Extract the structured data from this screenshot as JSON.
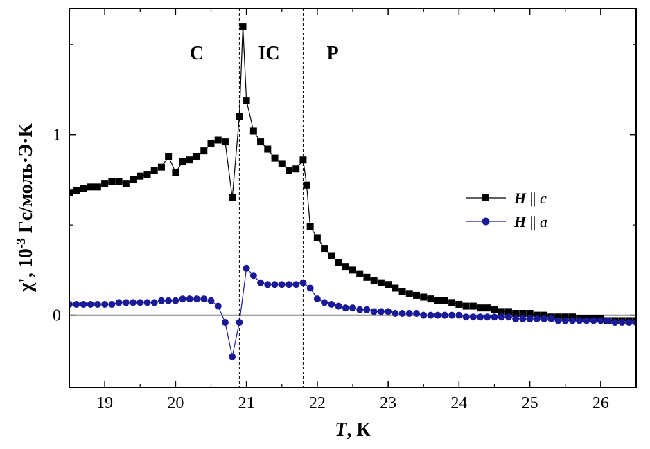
{
  "chart_data": {
    "type": "line",
    "xlabel_var": "T",
    "xlabel_unit": ", К",
    "ylabel_pre": "χ', 10",
    "ylabel_exp": "-3",
    "ylabel_post": " Гс/моль·Э·К",
    "xlim": [
      18.5,
      26.5
    ],
    "ylim": [
      -0.4,
      1.7
    ],
    "xticks": [
      19,
      20,
      21,
      22,
      23,
      24,
      25,
      26
    ],
    "yticks": [
      0,
      1
    ],
    "phase_boundaries": [
      20.9,
      21.8
    ],
    "phase_labels": [
      "C",
      "IC",
      "P"
    ],
    "legend": {
      "placement": "right"
    },
    "series": [
      {
        "name_main": "H",
        "name_sep": " || ",
        "name_axis": "c",
        "color": "#000000",
        "marker": "square",
        "x": [
          18.5,
          18.6,
          18.7,
          18.8,
          18.9,
          19.0,
          19.1,
          19.2,
          19.3,
          19.4,
          19.5,
          19.6,
          19.7,
          19.8,
          19.9,
          20.0,
          20.1,
          20.2,
          20.3,
          20.4,
          20.5,
          20.6,
          20.7,
          20.8,
          20.9,
          20.95,
          21.0,
          21.1,
          21.2,
          21.3,
          21.4,
          21.5,
          21.6,
          21.7,
          21.8,
          21.85,
          21.9,
          22.0,
          22.1,
          22.2,
          22.3,
          22.4,
          22.5,
          22.6,
          22.7,
          22.8,
          22.9,
          23.0,
          23.1,
          23.2,
          23.3,
          23.4,
          23.5,
          23.6,
          23.7,
          23.8,
          23.9,
          24.0,
          24.1,
          24.2,
          24.3,
          24.4,
          24.5,
          24.6,
          24.7,
          24.8,
          24.9,
          25.0,
          25.1,
          25.2,
          25.3,
          25.4,
          25.5,
          25.6,
          25.7,
          25.8,
          25.9,
          26.0,
          26.1,
          26.2,
          26.3,
          26.4,
          26.5
        ],
        "y": [
          0.68,
          0.69,
          0.7,
          0.71,
          0.71,
          0.73,
          0.74,
          0.74,
          0.73,
          0.75,
          0.77,
          0.78,
          0.8,
          0.82,
          0.88,
          0.79,
          0.85,
          0.86,
          0.88,
          0.91,
          0.95,
          0.97,
          0.96,
          0.65,
          1.1,
          1.6,
          1.19,
          1.02,
          0.96,
          0.92,
          0.87,
          0.84,
          0.8,
          0.81,
          0.86,
          0.72,
          0.49,
          0.43,
          0.37,
          0.33,
          0.29,
          0.27,
          0.25,
          0.23,
          0.21,
          0.19,
          0.18,
          0.17,
          0.15,
          0.13,
          0.12,
          0.11,
          0.1,
          0.09,
          0.08,
          0.08,
          0.07,
          0.06,
          0.05,
          0.05,
          0.04,
          0.04,
          0.03,
          0.02,
          0.02,
          0.01,
          0.01,
          0.01,
          0.0,
          0.0,
          -0.01,
          -0.01,
          -0.01,
          -0.01,
          -0.02,
          -0.02,
          -0.02,
          -0.02,
          -0.03,
          -0.03,
          -0.03,
          -0.03,
          -0.03
        ]
      },
      {
        "name_main": "H",
        "name_sep": " || ",
        "name_axis": "a",
        "color": "#1a1a99",
        "marker": "circle",
        "x": [
          18.5,
          18.6,
          18.7,
          18.8,
          18.9,
          19.0,
          19.1,
          19.2,
          19.3,
          19.4,
          19.5,
          19.6,
          19.7,
          19.8,
          19.9,
          20.0,
          20.1,
          20.2,
          20.3,
          20.4,
          20.5,
          20.6,
          20.7,
          20.8,
          20.9,
          21.0,
          21.1,
          21.2,
          21.3,
          21.4,
          21.5,
          21.6,
          21.7,
          21.8,
          21.9,
          22.0,
          22.1,
          22.2,
          22.3,
          22.4,
          22.5,
          22.6,
          22.7,
          22.8,
          22.9,
          23.0,
          23.1,
          23.2,
          23.3,
          23.4,
          23.5,
          23.6,
          23.7,
          23.8,
          23.9,
          24.0,
          24.1,
          24.2,
          24.3,
          24.4,
          24.5,
          24.6,
          24.7,
          24.8,
          24.9,
          25.0,
          25.1,
          25.2,
          25.3,
          25.4,
          25.5,
          25.6,
          25.7,
          25.8,
          25.9,
          26.0,
          26.1,
          26.2,
          26.3,
          26.4,
          26.5
        ],
        "y": [
          0.06,
          0.06,
          0.06,
          0.06,
          0.06,
          0.06,
          0.06,
          0.07,
          0.07,
          0.07,
          0.07,
          0.07,
          0.07,
          0.08,
          0.08,
          0.08,
          0.09,
          0.09,
          0.09,
          0.09,
          0.08,
          0.05,
          -0.04,
          -0.23,
          -0.04,
          0.26,
          0.22,
          0.18,
          0.17,
          0.17,
          0.17,
          0.17,
          0.17,
          0.18,
          0.15,
          0.09,
          0.07,
          0.06,
          0.05,
          0.04,
          0.04,
          0.03,
          0.03,
          0.02,
          0.02,
          0.02,
          0.01,
          0.01,
          0.01,
          0.01,
          0.0,
          0.0,
          0.0,
          0.0,
          0.0,
          0.0,
          -0.01,
          -0.01,
          -0.01,
          -0.01,
          -0.01,
          -0.01,
          -0.01,
          -0.02,
          -0.02,
          -0.02,
          -0.02,
          -0.02,
          -0.02,
          -0.03,
          -0.03,
          -0.03,
          -0.03,
          -0.03,
          -0.03,
          -0.03,
          -0.03,
          -0.04,
          -0.04,
          -0.04,
          -0.04
        ]
      }
    ]
  }
}
